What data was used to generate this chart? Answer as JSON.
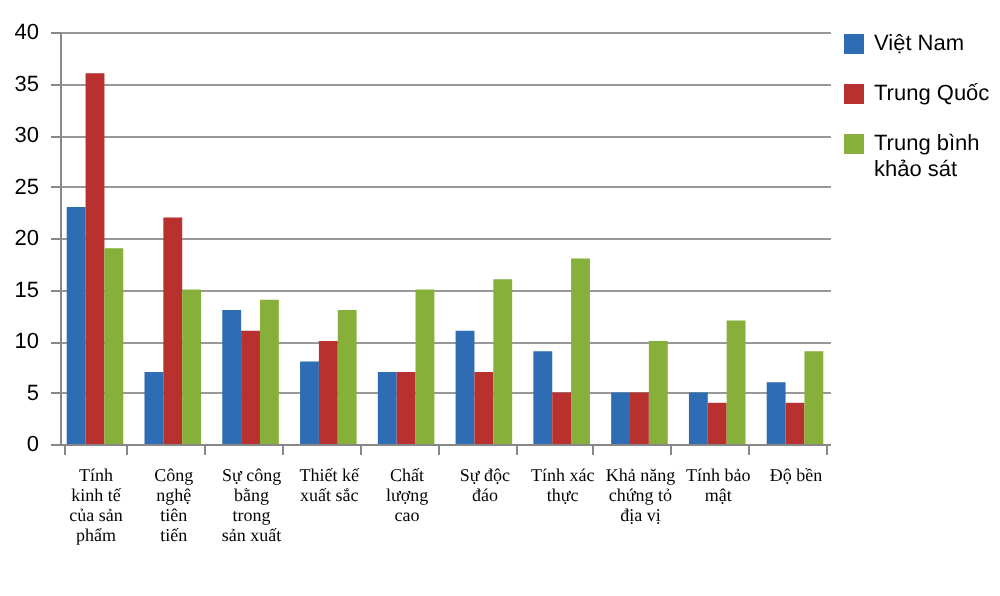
{
  "chart_data": {
    "type": "bar",
    "categories": [
      "Tính kinh tế của sản phẩm",
      "Công nghệ tiên tiến",
      "Sự công bằng trong sản xuất",
      "Thiết kế xuất sắc",
      "Chất lượng cao",
      "Sự độc đáo",
      "Tính xác thực",
      "Khả năng chứng tỏ địa vị",
      "Tính bảo mật",
      "Độ bền"
    ],
    "series": [
      {
        "name": "Việt Nam",
        "color": "#2e6db4",
        "values": [
          23,
          7,
          13,
          8,
          7,
          11,
          9,
          5,
          5,
          6
        ]
      },
      {
        "name": "Trung Quốc",
        "color": "#b8312f",
        "values": [
          36,
          22,
          11,
          10,
          7,
          7,
          5,
          5,
          4,
          4
        ]
      },
      {
        "name": "Trung bình khảo sát",
        "color": "#86b03a",
        "values": [
          19,
          15,
          14,
          13,
          15,
          16,
          18,
          10,
          12,
          9
        ]
      }
    ],
    "ylim": [
      0,
      40
    ],
    "yticks": [
      0,
      5,
      10,
      15,
      20,
      25,
      30,
      35,
      40
    ],
    "grid": "y",
    "legend": "right"
  }
}
